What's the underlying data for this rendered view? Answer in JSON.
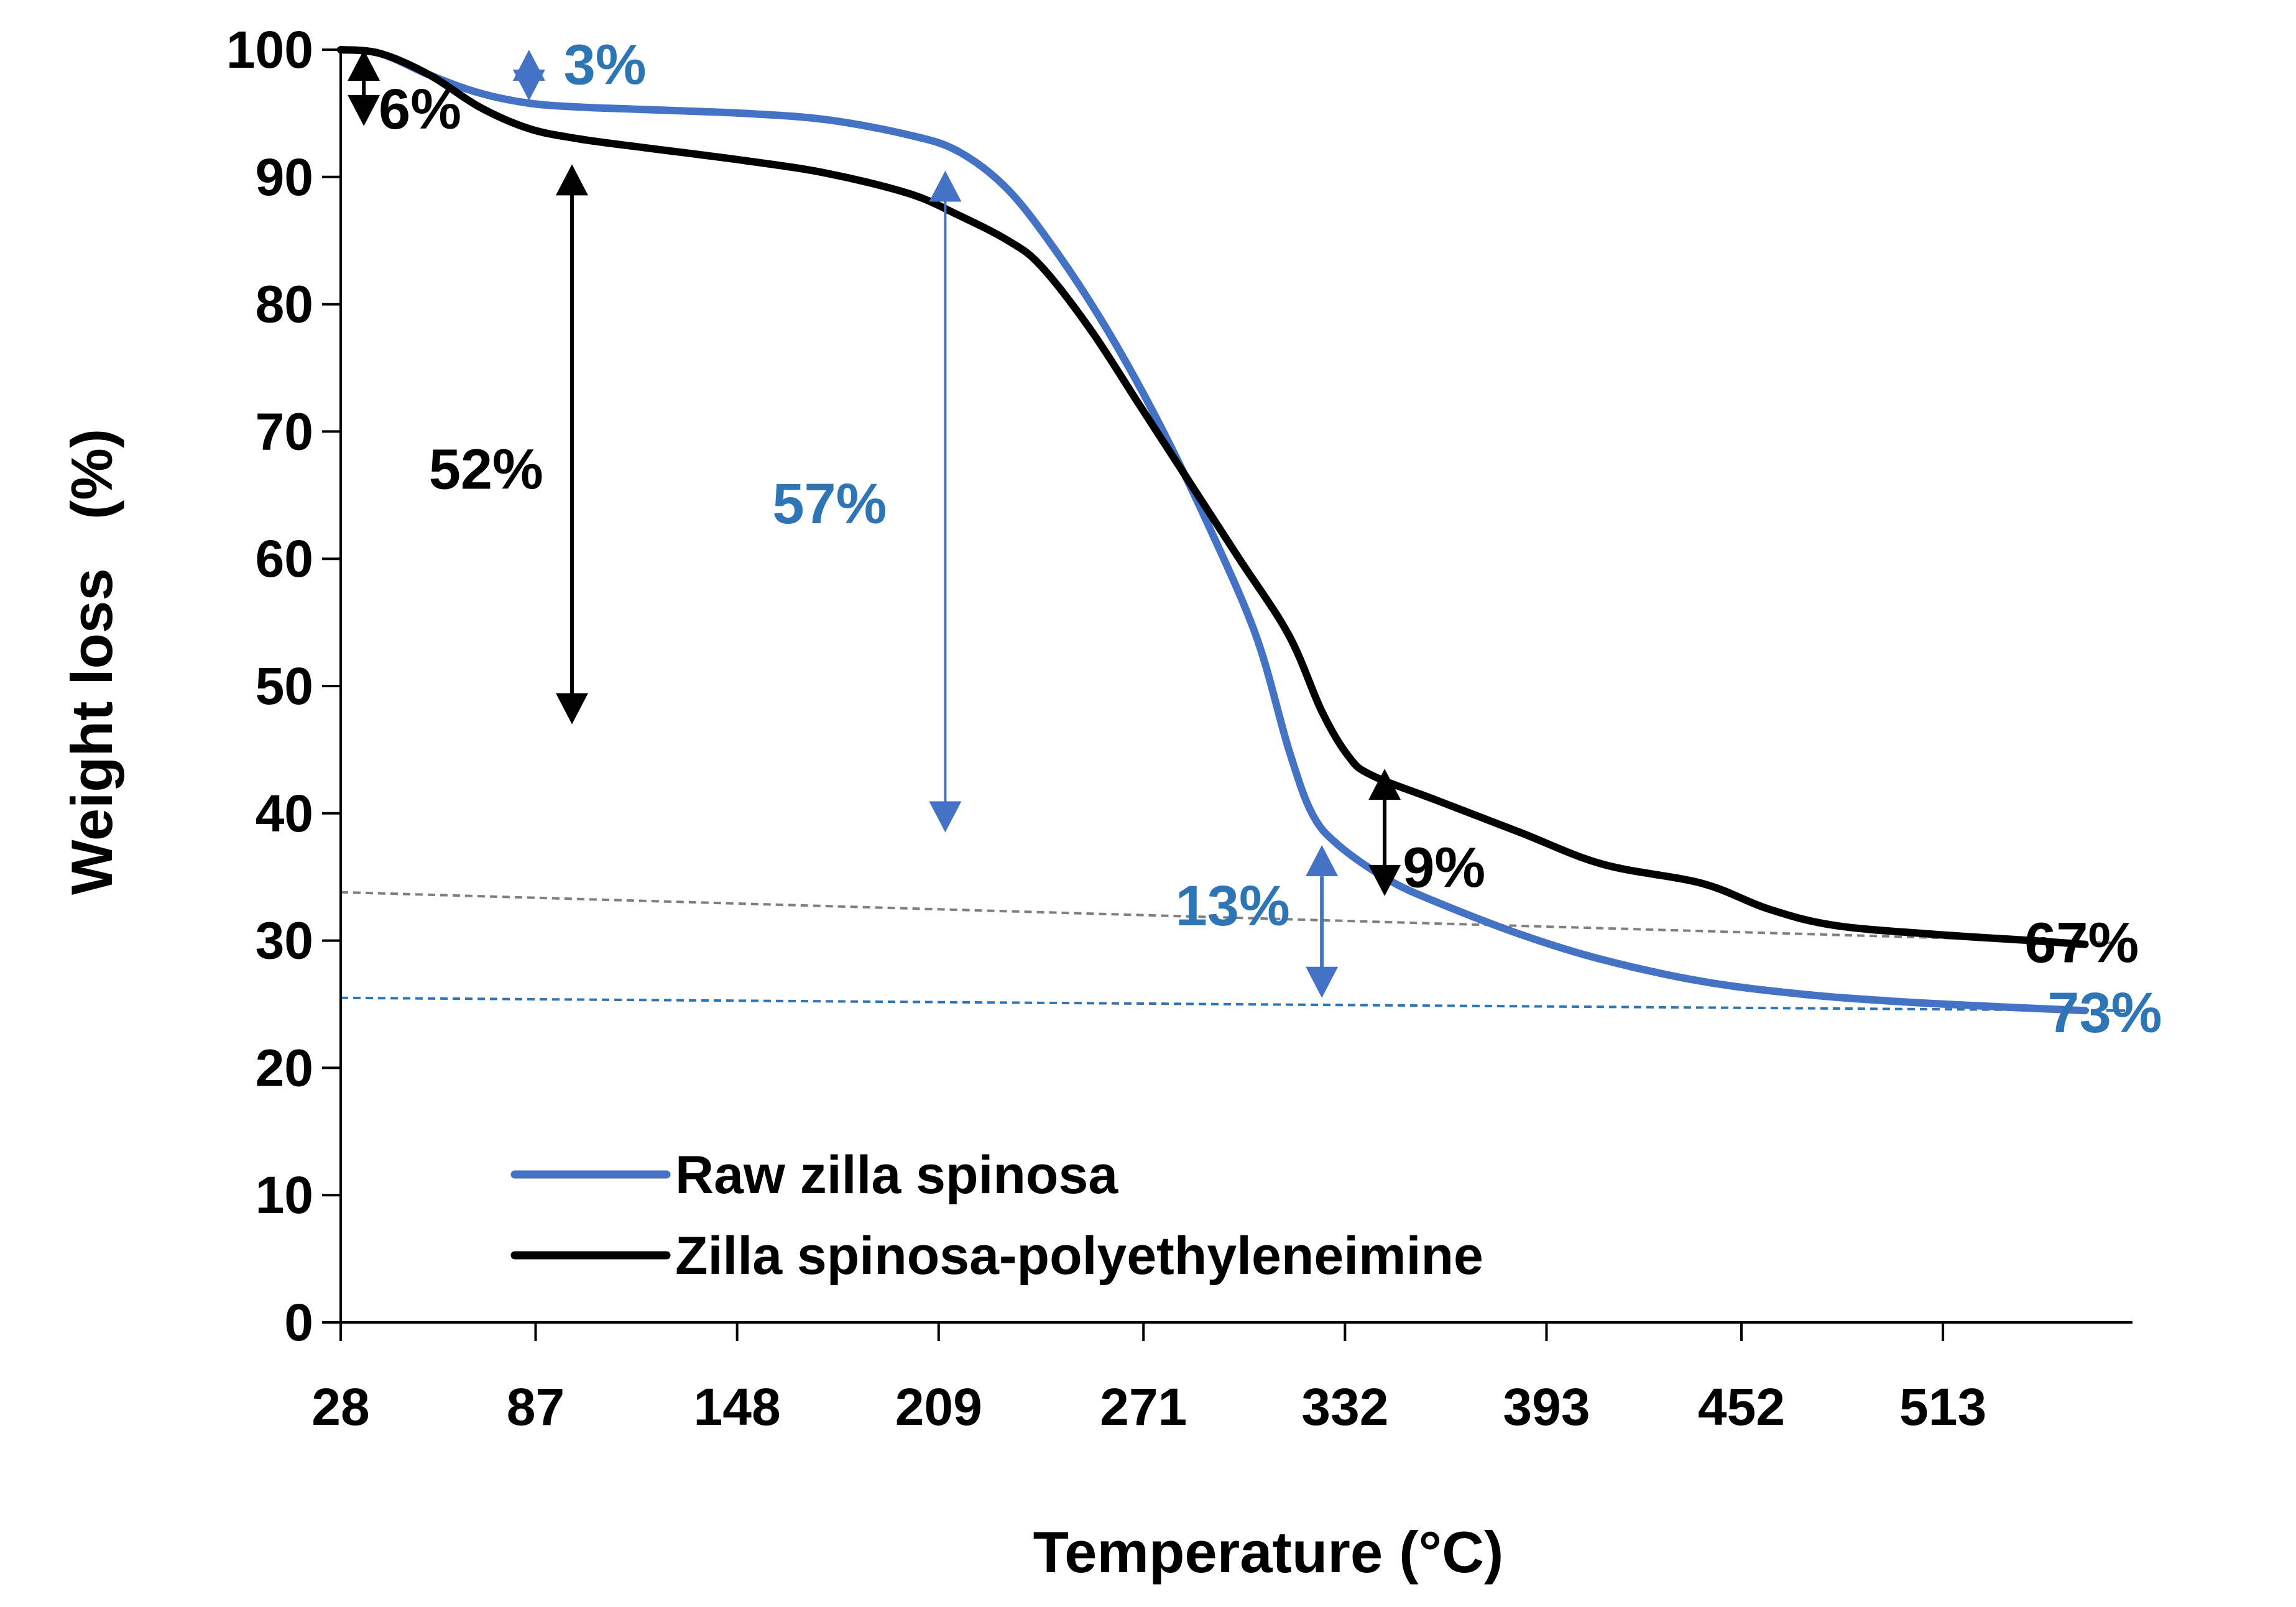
{
  "colors": {
    "raw": "#4472C4",
    "raw_label": "#2E75B6",
    "pei": "#000000",
    "raw_ref": "#2E75B6",
    "pei_ref": "#7F7F7F"
  },
  "chart_data": {
    "type": "line",
    "title": "",
    "xlabel": "Temperature (°C)",
    "ylabel": "Weight loss   (%)",
    "xlim": [
      28,
      570
    ],
    "ylim": [
      0,
      100
    ],
    "x_ticks": [
      {
        "value": 28,
        "label": "28"
      },
      {
        "value": 87,
        "label": "87"
      },
      {
        "value": 148,
        "label": "148"
      },
      {
        "value": 209,
        "label": "209"
      },
      {
        "value": 271,
        "label": "271"
      },
      {
        "value": 332,
        "label": "332"
      },
      {
        "value": 393,
        "label": "393"
      },
      {
        "value": 452,
        "label": "452"
      },
      {
        "value": 513,
        "label": "513"
      }
    ],
    "y_ticks": [
      {
        "value": 0,
        "label": "0"
      },
      {
        "value": 10,
        "label": "10"
      },
      {
        "value": 20,
        "label": "20"
      },
      {
        "value": 30,
        "label": "30"
      },
      {
        "value": 40,
        "label": "40"
      },
      {
        "value": 50,
        "label": "50"
      },
      {
        "value": 60,
        "label": "60"
      },
      {
        "value": 70,
        "label": "70"
      },
      {
        "value": 80,
        "label": "80"
      },
      {
        "value": 90,
        "label": "90"
      },
      {
        "value": 100,
        "label": "100"
      }
    ],
    "legend": {
      "placement": "bottom-left"
    },
    "series": [
      {
        "name": "Raw zilla spinosa",
        "color_key": "raw",
        "points": [
          [
            28,
            100
          ],
          [
            40,
            99.7
          ],
          [
            55,
            98
          ],
          [
            70,
            96.6
          ],
          [
            85,
            95.8
          ],
          [
            100,
            95.5
          ],
          [
            120,
            95.3
          ],
          [
            150,
            95
          ],
          [
            175,
            94.5
          ],
          [
            200,
            93.3
          ],
          [
            215,
            92
          ],
          [
            230,
            89
          ],
          [
            245,
            84
          ],
          [
            260,
            78
          ],
          [
            275,
            71
          ],
          [
            290,
            63
          ],
          [
            305,
            54
          ],
          [
            315,
            45
          ],
          [
            322,
            40
          ],
          [
            330,
            37.5
          ],
          [
            345,
            34.8
          ],
          [
            360,
            33
          ],
          [
            385,
            30.5
          ],
          [
            410,
            28.5
          ],
          [
            440,
            26.8
          ],
          [
            470,
            25.8
          ],
          [
            500,
            25.2
          ],
          [
            530,
            24.8
          ],
          [
            556,
            24.5
          ]
        ]
      },
      {
        "name": "Zilla spinosa-polyethyleneimine",
        "color_key": "pei",
        "points": [
          [
            28,
            100
          ],
          [
            40,
            99.7
          ],
          [
            55,
            98
          ],
          [
            70,
            95.5
          ],
          [
            85,
            93.8
          ],
          [
            100,
            93
          ],
          [
            120,
            92.3
          ],
          [
            150,
            91.3
          ],
          [
            175,
            90.3
          ],
          [
            200,
            88.7
          ],
          [
            215,
            87
          ],
          [
            230,
            85
          ],
          [
            240,
            83
          ],
          [
            255,
            78
          ],
          [
            270,
            72
          ],
          [
            285,
            66
          ],
          [
            300,
            60
          ],
          [
            315,
            54
          ],
          [
            325,
            48
          ],
          [
            333,
            44.5
          ],
          [
            340,
            43
          ],
          [
            360,
            41
          ],
          [
            385,
            38.5
          ],
          [
            410,
            36
          ],
          [
            440,
            34.5
          ],
          [
            460,
            32.5
          ],
          [
            480,
            31.2
          ],
          [
            510,
            30.5
          ],
          [
            540,
            30
          ],
          [
            556,
            29.7
          ]
        ]
      }
    ],
    "reference_lines": [
      {
        "name": "raw-final-residue",
        "color_key": "raw_ref",
        "y_start": 25.5,
        "y_end": 24.5
      },
      {
        "name": "pei-final-residue",
        "color_key": "pei_ref",
        "y_start": 33.8,
        "y_end": 29.8
      }
    ],
    "annotations": [
      {
        "label": "3%",
        "color_key": "raw_label",
        "x": 85,
        "y_top": 100,
        "y_bottom": 96,
        "text_x": 108,
        "text_y": 97.3,
        "arrow_color_key": "raw",
        "thin": false
      },
      {
        "label": "6%",
        "color_key": "pei",
        "x": 35,
        "y_top": 100,
        "y_bottom": 94,
        "text_x": 52,
        "text_y": 93.8,
        "arrow_color_key": "pei",
        "thin": false
      },
      {
        "label": "52%",
        "color_key": "pei",
        "x": 98,
        "y_top": 91,
        "y_bottom": 47,
        "text_x": 72,
        "text_y": 65.5,
        "arrow_color_key": "pei",
        "thin": false
      },
      {
        "label": "57%",
        "color_key": "raw_label",
        "x": 211,
        "y_top": 90.5,
        "y_bottom": 38.5,
        "text_x": 176,
        "text_y": 62.8,
        "arrow_color_key": "raw",
        "thin": true
      },
      {
        "label": "13%",
        "color_key": "raw_label",
        "x": 325,
        "y_top": 37.5,
        "y_bottom": 25.5,
        "text_x": 298,
        "text_y": 31.2,
        "arrow_color_key": "raw",
        "thin": false
      },
      {
        "label": "9%",
        "color_key": "pei",
        "x": 344,
        "y_top": 43.5,
        "y_bottom": 33.5,
        "text_x": 362,
        "text_y": 34.2,
        "arrow_color_key": "pei",
        "thin": false
      },
      {
        "label": "67%",
        "color_key": "pei",
        "x": null,
        "y_top": null,
        "y_bottom": null,
        "text_x": 555,
        "text_y": 28.3,
        "arrow_color_key": "pei",
        "thin": false
      },
      {
        "label": "73%",
        "color_key": "raw_label",
        "x": null,
        "y_top": null,
        "y_bottom": null,
        "text_x": 562,
        "text_y": 22.8,
        "arrow_color_key": "raw",
        "thin": false
      }
    ]
  }
}
